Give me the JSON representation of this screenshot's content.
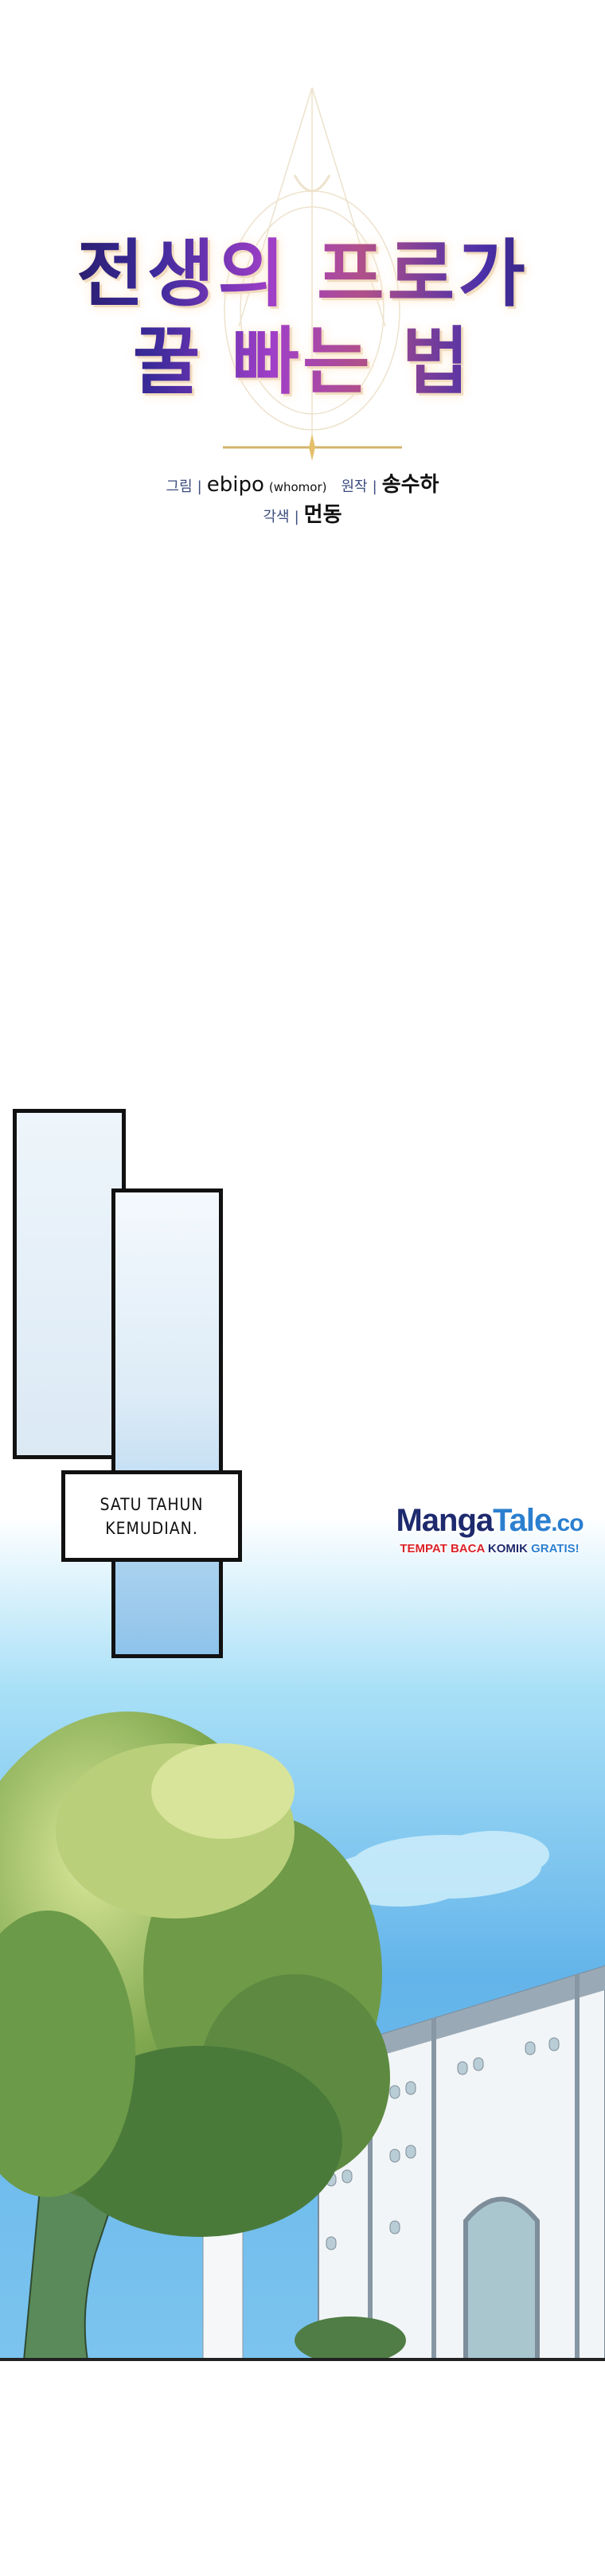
{
  "title": {
    "line1": "전생의 프로가",
    "line2": "꿀 빠는 법"
  },
  "credits": {
    "art_label": "그림",
    "art_name": "ebipo",
    "art_alias": "(whomor)",
    "story_label": "원작",
    "story_name": "송수하",
    "adapt_label": "각색",
    "adapt_name": "먼동",
    "separator": "|"
  },
  "caption": {
    "line1": "SATU TAHUN",
    "line2": "KEMUDIAN."
  },
  "watermark": {
    "brand_a": "Manga",
    "brand_b": "Tale",
    "brand_c": ".co",
    "tag_a": "TEMPAT BACA ",
    "tag_b": "KOMIK ",
    "tag_c": "GRATIS!"
  },
  "colors": {
    "sky_top": "#ffffff",
    "sky_bottom": "#5aaee8",
    "foliage": "#6f9a45",
    "title_purple": "#6a36c0"
  }
}
